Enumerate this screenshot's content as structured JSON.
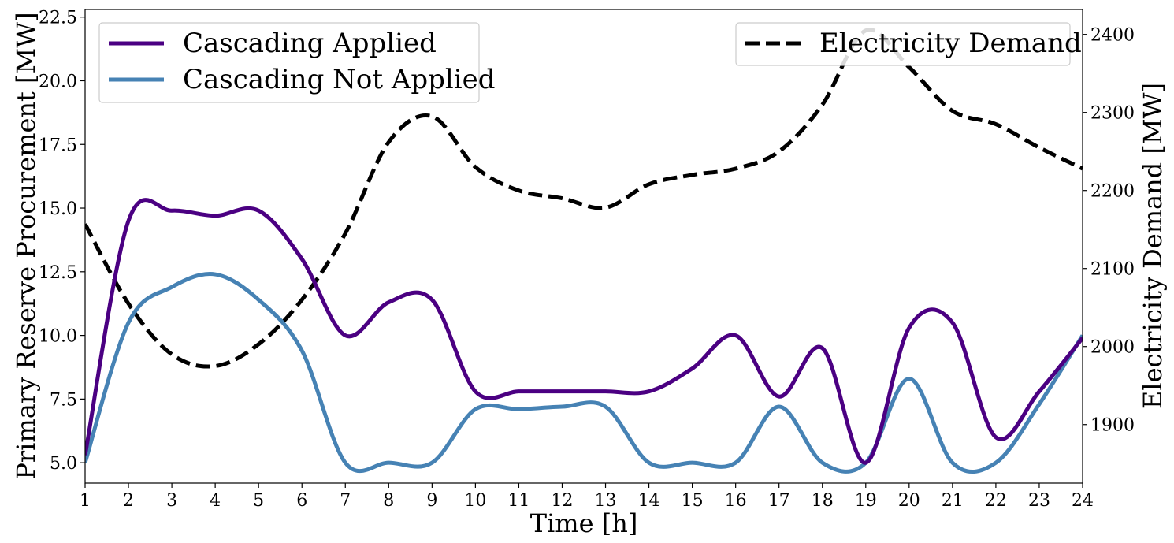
{
  "chart_data": {
    "type": "line",
    "xlabel": "Time [h]",
    "ylabel_left": "Primary Reserve Procurement [MW]",
    "ylabel_right": "Electricity Demand [MW]",
    "xlim": [
      1,
      24
    ],
    "ylim_left": [
      4.2,
      22.8
    ],
    "ylim_right": [
      1825,
      2432
    ],
    "x_ticks": [
      1,
      2,
      3,
      4,
      5,
      6,
      7,
      8,
      9,
      10,
      11,
      12,
      13,
      14,
      15,
      16,
      17,
      18,
      19,
      20,
      21,
      22,
      23,
      24
    ],
    "y_ticks_left": [
      5.0,
      7.5,
      10.0,
      12.5,
      15.0,
      17.5,
      20.0,
      22.5
    ],
    "y_ticks_right": [
      1900,
      2000,
      2100,
      2200,
      2300,
      2400
    ],
    "grid": false,
    "legend_left": {
      "placement": "upper-left",
      "entries": [
        "Cascading Applied",
        "Cascading Not Applied"
      ]
    },
    "legend_right": {
      "placement": "upper-right",
      "entries": [
        "Electricity Demand"
      ]
    },
    "x": [
      1,
      2,
      3,
      4,
      5,
      6,
      7,
      8,
      9,
      10,
      11,
      12,
      13,
      14,
      15,
      16,
      17,
      18,
      19,
      20,
      21,
      22,
      23,
      24
    ],
    "series": [
      {
        "name": "Cascading Applied",
        "axis": "left",
        "color": "#4b0082",
        "style": "solid",
        "values": [
          5.3,
          14.5,
          14.9,
          14.7,
          14.9,
          13.0,
          10.0,
          11.3,
          11.4,
          7.8,
          7.8,
          7.8,
          7.8,
          7.8,
          8.7,
          10.0,
          7.6,
          9.5,
          5.0,
          10.3,
          10.5,
          6.0,
          7.8,
          9.9
        ]
      },
      {
        "name": "Cascading Not Applied",
        "axis": "left",
        "color": "#4682b4",
        "style": "solid",
        "values": [
          5.0,
          10.5,
          11.9,
          12.4,
          11.4,
          9.4,
          5.0,
          5.0,
          5.0,
          7.1,
          7.1,
          7.2,
          7.2,
          5.0,
          5.0,
          5.0,
          7.2,
          5.0,
          5.0,
          8.3,
          5.0,
          5.0,
          7.3,
          10.0
        ]
      },
      {
        "name": "Electricity Demand",
        "axis": "right",
        "color": "#000000",
        "style": "dashed",
        "values": [
          2157,
          2055,
          1990,
          1975,
          2003,
          2060,
          2145,
          2262,
          2295,
          2230,
          2200,
          2190,
          2178,
          2208,
          2220,
          2228,
          2250,
          2310,
          2405,
          2358,
          2302,
          2285,
          2255,
          2228
        ]
      }
    ]
  }
}
